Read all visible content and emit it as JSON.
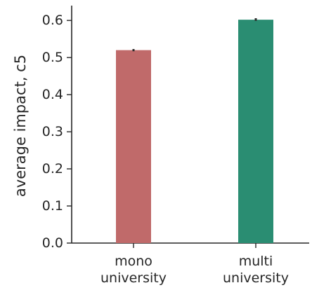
{
  "chart_data": {
    "type": "bar",
    "categories": [
      [
        "mono",
        "university"
      ],
      [
        "multi",
        "university"
      ]
    ],
    "values": [
      0.52,
      0.602
    ],
    "errors": [
      [
        0.517,
        0.523
      ],
      [
        0.599,
        0.606
      ]
    ],
    "colors": [
      "#c06a6a",
      "#2a8d72"
    ],
    "title": "",
    "xlabel": "",
    "ylabel": "average impact, c5",
    "ylim": [
      0,
      0.64
    ],
    "yticks": [
      0.0,
      0.1,
      0.2,
      0.3,
      0.4,
      0.5,
      0.6
    ],
    "ytick_labels": [
      "0.0",
      "0.1",
      "0.2",
      "0.3",
      "0.4",
      "0.5",
      "0.6"
    ],
    "grid": false,
    "legend": "none"
  }
}
